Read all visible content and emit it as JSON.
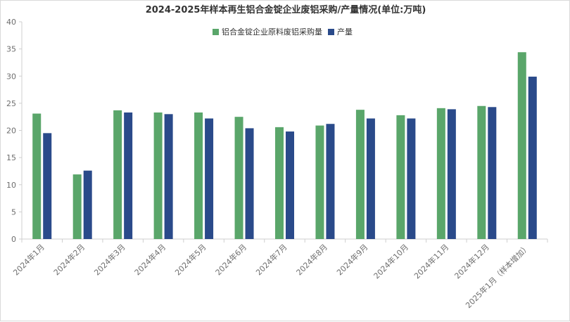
{
  "chart_data": {
    "type": "bar",
    "title": "2024-2025年样本再生铝合金锭企业废铝采购/产量情况(单位:万吨)",
    "xlabel": "",
    "ylabel": "",
    "ylim": [
      0,
      40
    ],
    "yticks": [
      0,
      5,
      10,
      15,
      20,
      25,
      30,
      35,
      40
    ],
    "grid": false,
    "legend_position": "top-center",
    "categories": [
      "2024年1月",
      "2024年2月",
      "2024年3月",
      "2024年4月",
      "2024年5月",
      "2024年6月",
      "2024年7月",
      "2024年8月",
      "2024年9月",
      "2024年10月",
      "2024年11月",
      "2024年12月",
      "2025年1月（样本增加）"
    ],
    "series": [
      {
        "name": "铝合金锭企业原料废铝采购量",
        "color": "#5aa66a",
        "values": [
          23.1,
          11.9,
          23.7,
          23.3,
          23.3,
          22.5,
          20.6,
          20.9,
          23.8,
          22.8,
          24.1,
          24.5,
          34.4
        ]
      },
      {
        "name": "产量",
        "color": "#2a4a8a",
        "values": [
          19.5,
          12.6,
          23.3,
          23.0,
          22.2,
          20.4,
          19.8,
          21.2,
          22.2,
          22.2,
          23.9,
          24.3,
          29.9
        ]
      }
    ]
  }
}
